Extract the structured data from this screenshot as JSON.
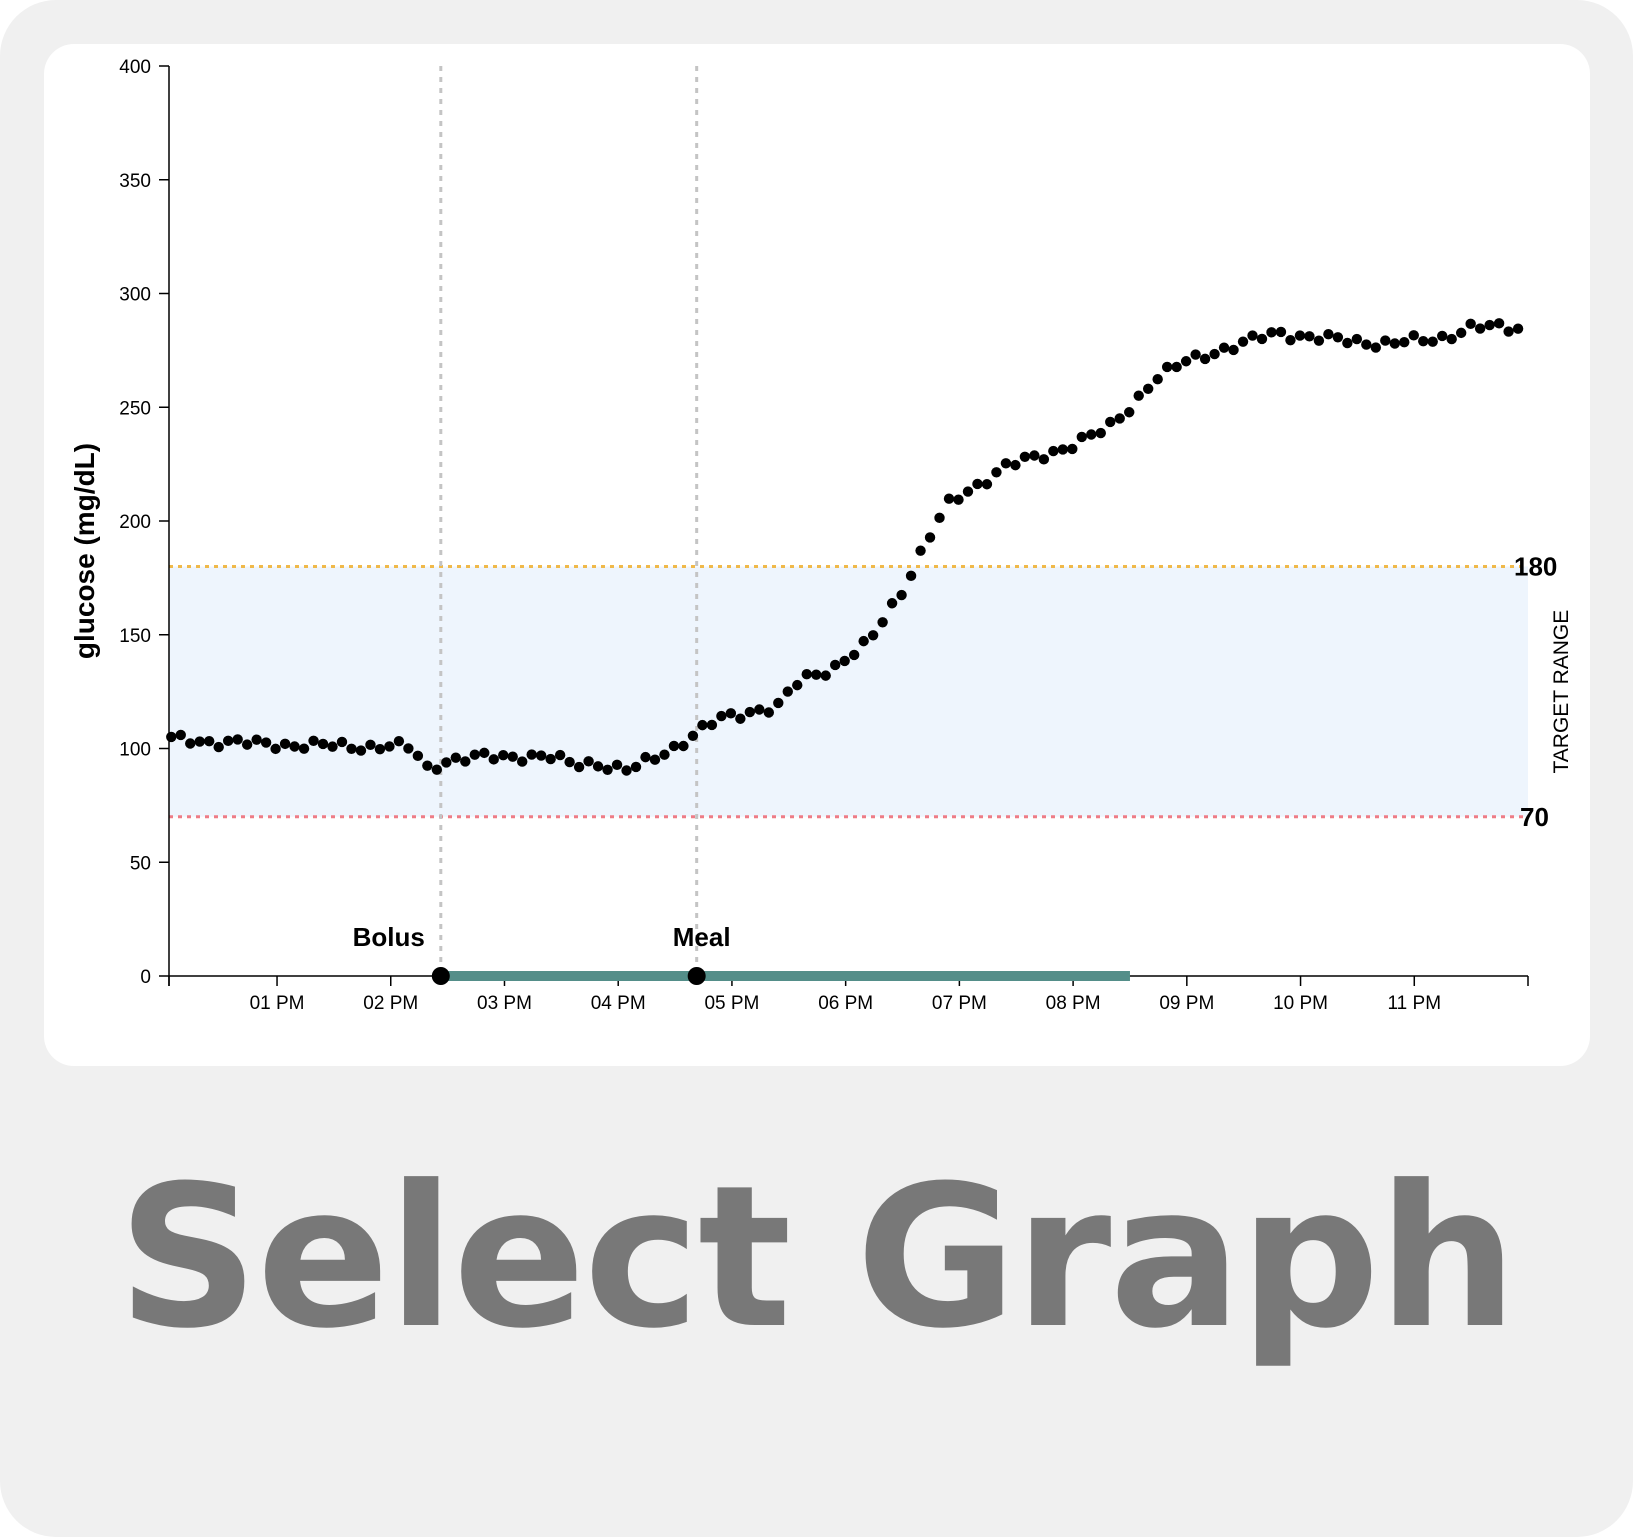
{
  "caption": "Select Graph",
  "chart_data": {
    "type": "scatter",
    "title": "",
    "ylabel": "glucose (mg/dL)",
    "xlabel": "",
    "ylim": [
      0,
      400
    ],
    "yticks": [
      0,
      50,
      100,
      150,
      200,
      250,
      300,
      350,
      400
    ],
    "xlim_hours": [
      12.05,
      24.0
    ],
    "xticks": [
      {
        "hour": 13,
        "label": "01 PM"
      },
      {
        "hour": 14,
        "label": "02 PM"
      },
      {
        "hour": 15,
        "label": "03 PM"
      },
      {
        "hour": 16,
        "label": "04 PM"
      },
      {
        "hour": 17,
        "label": "05 PM"
      },
      {
        "hour": 18,
        "label": "06 PM"
      },
      {
        "hour": 19,
        "label": "07 PM"
      },
      {
        "hour": 20,
        "label": "08 PM"
      },
      {
        "hour": 21,
        "label": "09 PM"
      },
      {
        "hour": 22,
        "label": "10 PM"
      },
      {
        "hour": 23,
        "label": "11 PM"
      }
    ],
    "target_range": {
      "low": 70,
      "high": 180,
      "label": "TARGET RANGE",
      "low_label": "70",
      "high_label": "180"
    },
    "events": [
      {
        "name": "Bolus",
        "hour": 14.44
      },
      {
        "name": "Meal",
        "hour": 16.69
      }
    ],
    "selection": {
      "start_hour": 14.44,
      "end_hour": 20.5
    },
    "colors": {
      "points": "#000000",
      "target_fill": "#eef5fd",
      "high_line": "#f0b94a",
      "low_line": "#ee7c86",
      "event_line": "#c4c4c4",
      "selection_bar": "#548e89",
      "axis": "#000000"
    },
    "series": [
      {
        "anchors": [
          [
            12.1,
            104
          ],
          [
            12.5,
            103
          ],
          [
            12.8,
            102
          ],
          [
            13.0,
            102
          ],
          [
            13.5,
            101
          ],
          [
            14.0,
            101
          ],
          [
            14.2,
            100
          ],
          [
            14.3,
            91
          ],
          [
            14.5,
            95
          ],
          [
            14.8,
            96
          ],
          [
            15.2,
            97
          ],
          [
            15.4,
            96
          ],
          [
            15.6,
            93
          ],
          [
            15.8,
            94
          ],
          [
            16.0,
            91
          ],
          [
            16.1,
            90
          ],
          [
            16.5,
            101
          ],
          [
            16.9,
            113
          ],
          [
            17.2,
            117
          ],
          [
            17.4,
            118
          ],
          [
            17.6,
            130
          ],
          [
            17.9,
            136
          ],
          [
            18.2,
            146
          ],
          [
            18.5,
            170
          ],
          [
            18.7,
            190
          ],
          [
            18.9,
            207
          ],
          [
            19.1,
            214
          ],
          [
            19.4,
            224
          ],
          [
            19.7,
            228
          ],
          [
            20.0,
            234
          ],
          [
            20.3,
            240
          ],
          [
            20.5,
            250
          ],
          [
            20.7,
            262
          ],
          [
            21.0,
            270
          ],
          [
            21.2,
            274
          ],
          [
            21.5,
            278
          ],
          [
            21.8,
            283
          ],
          [
            22.2,
            280
          ],
          [
            22.5,
            279
          ],
          [
            22.8,
            278
          ],
          [
            23.2,
            280
          ],
          [
            23.5,
            285
          ],
          [
            23.9,
            285
          ]
        ],
        "step_hours": 0.0834,
        "start_hour": 12.07,
        "end_hour": 23.92
      }
    ]
  }
}
